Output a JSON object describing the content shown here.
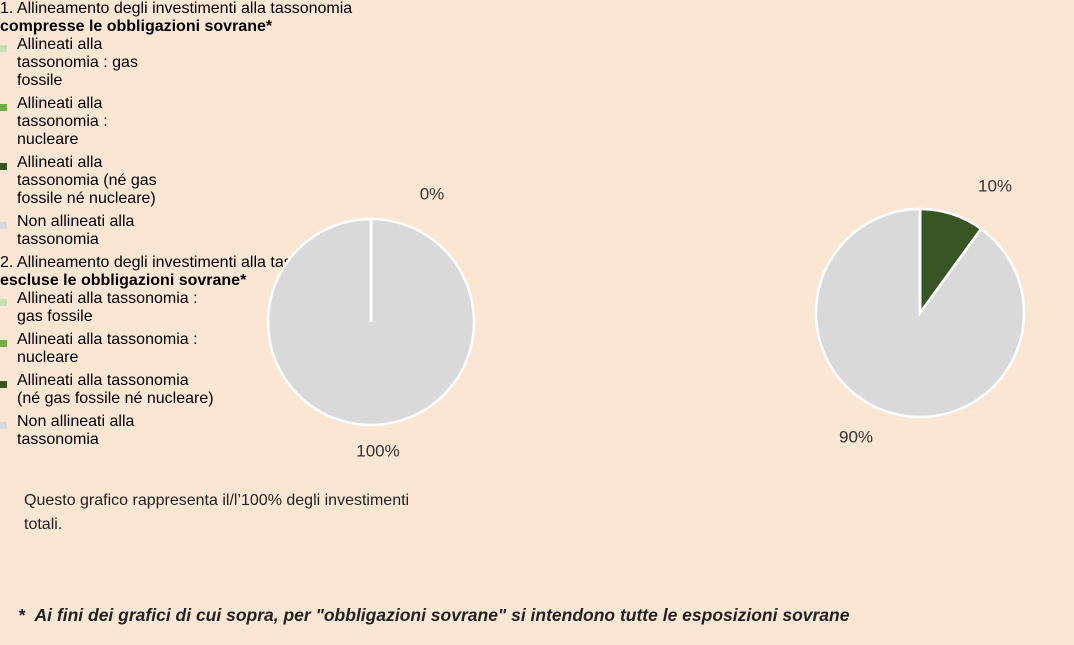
{
  "chart_data": [
    {
      "type": "pie",
      "title": "1. Allineamento degli investimenti alla tassonomia",
      "title_bold": "compresse le obbligazioni sovrane*",
      "categories": [
        "Allineati alla tassonomia : gas fossile",
        "Allineati alla tassonomia : nucleare",
        "Allineati alla tassonomia (né gas fossile né nucleare)",
        "Non allineati alla tassonomia"
      ],
      "values": [
        0,
        0,
        0,
        100
      ],
      "value_labels": [
        null,
        null,
        "0%",
        "100%"
      ],
      "colors": [
        "#c5e0b4",
        "#70ad47",
        "#375623",
        "#d9d9d9"
      ],
      "legend": "left"
    },
    {
      "type": "pie",
      "title": "2. Allineamento degli investimenti alla tassonomia",
      "title_bold": "escluse le obbligazioni sovrane*",
      "categories": [
        "Allineati alla tassonomia : gas fossile",
        "Allineati alla tassonomia : nucleare",
        "Allineati alla tassonomia (né gas fossile né nucleare)",
        "Non allineati alla tassonomia"
      ],
      "values": [
        0,
        0,
        10,
        90
      ],
      "value_labels": [
        null,
        null,
        "10%",
        "90%"
      ],
      "colors": [
        "#c5e0b4",
        "#70ad47",
        "#375623",
        "#d9d9d9"
      ],
      "legend": "left",
      "note": "Questo grafico rappresenta il/l’100% degli investimenti totali."
    }
  ],
  "footnote": {
    "mark": "*",
    "text": "Ai fini dei grafici di cui sopra, per \"obbligazioni sovrane\" si intendono tutte le esposizioni sovrane"
  }
}
